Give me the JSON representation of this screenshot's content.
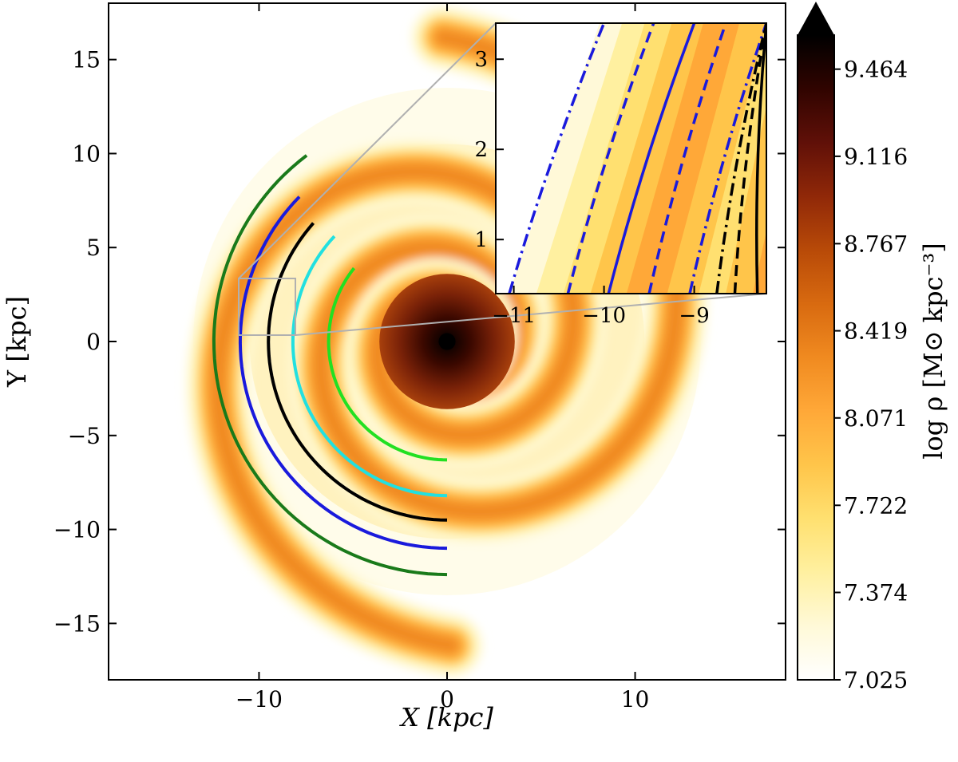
{
  "chart_data": [
    {
      "type": "heatmap",
      "title": "",
      "xlabel": "X [kpc]",
      "ylabel": "Y [kpc]",
      "xlim": [
        -18,
        18
      ],
      "ylim": [
        -18,
        18
      ],
      "x_ticks": [
        -10,
        0,
        10
      ],
      "y_ticks": [
        -15,
        -10,
        -5,
        0,
        5,
        10,
        15
      ],
      "x_tick_labels": [
        "−10",
        "0",
        "10"
      ],
      "y_tick_labels": [
        "−15",
        "−10",
        "−5",
        "0",
        "5",
        "10",
        "15"
      ],
      "field": "log ρ spiral-arm density map",
      "arms": 2,
      "center": [
        0,
        0
      ],
      "zoom_box": {
        "x": [
          -11.2,
          -8.2
        ],
        "y": [
          0.4,
          3.4
        ]
      },
      "series": [
        {
          "color": "#1a7a1a",
          "radius_kpc": 12.4,
          "x_range": [
            -12.4,
            -3.5
          ],
          "y_range": [
            -12.6,
            9.9
          ]
        },
        {
          "color": "#1a1adc",
          "radius_kpc": 11.0,
          "x_range": [
            -11.0,
            -2.7
          ],
          "y_range": [
            -11.9,
            7.7
          ]
        },
        {
          "color": "#000000",
          "radius_kpc": 9.5,
          "x_range": [
            -9.5,
            -2.3
          ],
          "y_range": [
            -10.2,
            6.3
          ]
        },
        {
          "color": "#22e0e0",
          "radius_kpc": 8.2,
          "x_range": [
            -8.2,
            -1.9
          ],
          "y_range": [
            -9.5,
            5.6
          ]
        },
        {
          "color": "#22e022",
          "radius_kpc": 6.3,
          "x_range": [
            -6.3,
            -1.4
          ],
          "y_range": [
            -7.0,
            3.9
          ]
        }
      ]
    },
    {
      "type": "heatmap",
      "title": "",
      "inset": true,
      "xlim": [
        -11.2,
        -8.2
      ],
      "ylim": [
        0.4,
        3.4
      ],
      "x_ticks": [
        -11,
        -10,
        -9
      ],
      "y_ticks": [
        1,
        2,
        3
      ],
      "x_tick_labels": [
        "−11",
        "−10",
        "−9"
      ],
      "y_tick_labels": [
        "1",
        "2",
        "3"
      ],
      "series": [
        {
          "color": "#1a1adc",
          "style": "dashdot",
          "x_at_bottom": -11.05,
          "x_at_top": -10.0
        },
        {
          "color": "#1a1adc",
          "style": "dashed",
          "x_at_bottom": -10.4,
          "x_at_top": -9.45
        },
        {
          "color": "#1a1adc",
          "style": "solid",
          "x_at_bottom": -9.95,
          "x_at_top": -9.0
        },
        {
          "color": "#1a1adc",
          "style": "dashed",
          "x_at_bottom": -9.5,
          "x_at_top": -8.65
        },
        {
          "color": "#1a1adc",
          "style": "dashdot",
          "x_at_bottom": -9.05,
          "x_at_top": -8.2
        },
        {
          "color": "#000000",
          "style": "dashdot",
          "x_at_bottom": -8.75,
          "x_at_top": -8.2
        },
        {
          "color": "#000000",
          "style": "dashed",
          "x_at_bottom": -8.55,
          "x_at_top": -8.2
        },
        {
          "color": "#000000",
          "style": "solid",
          "x_at_bottom": -8.3,
          "x_at_top": -8.2
        }
      ]
    }
  ],
  "colorbar": {
    "label": "log ρ [M⊙ kpc⁻³]",
    "min": 7.025,
    "max": 9.6,
    "extend": "max",
    "ticks": [
      9.464,
      9.116,
      8.767,
      8.419,
      8.071,
      7.722,
      7.374,
      7.025
    ],
    "tick_labels": [
      "9.464",
      "9.116",
      "8.767",
      "8.419",
      "8.071",
      "7.722",
      "7.374",
      "7.025"
    ],
    "colormap": [
      "#ffffff",
      "#fff9d8",
      "#fff0a0",
      "#ffe070",
      "#ffc54a",
      "#ffa838",
      "#f08a20",
      "#d86a10",
      "#b84a08",
      "#902808",
      "#601008",
      "#300400",
      "#000000"
    ]
  },
  "colors": {
    "frame": "#000000",
    "zoom_connector": "#b0b0b0"
  }
}
